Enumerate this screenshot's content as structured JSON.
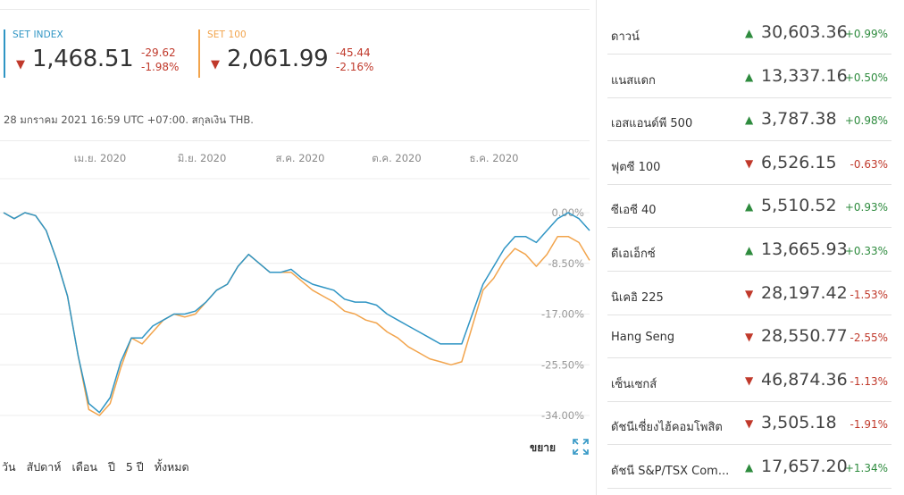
{
  "indices": {
    "set": {
      "name": "SET INDEX",
      "value": "1,468.51",
      "change": "-29.62",
      "pct": "-1.98%",
      "direction": "down"
    },
    "set100": {
      "name": "SET 100",
      "value": "2,061.99",
      "change": "-45.44",
      "pct": "-2.16%",
      "direction": "down"
    }
  },
  "timestamp": "28 มกราคม 2021 16:59 UTC +07:00. สกุลเงิน THB.",
  "controls": {
    "expand_label": "ขยาย",
    "ranges": [
      "วัน",
      "สัปดาห์",
      "เดือน",
      "ปี",
      "5 ปี",
      "ทั้งหมด"
    ]
  },
  "colors": {
    "set": "#2f95c4",
    "set100": "#f2a44c",
    "up": "#2e8b3e",
    "down": "#c0392b"
  },
  "tickers": [
    {
      "name": "ดาวน์",
      "value": "30,603.36",
      "change": "+0.99%",
      "direction": "up"
    },
    {
      "name": "แนสแดก",
      "value": "13,337.16",
      "change": "+0.50%",
      "direction": "up"
    },
    {
      "name": "เอสแอนด์พี 500",
      "value": "3,787.38",
      "change": "+0.98%",
      "direction": "up"
    },
    {
      "name": "ฟุตซี 100",
      "value": "6,526.15",
      "change": "-0.63%",
      "direction": "down"
    },
    {
      "name": "ซีเอซี 40",
      "value": "5,510.52",
      "change": "+0.93%",
      "direction": "up"
    },
    {
      "name": "ดีเอเอ็กซ์",
      "value": "13,665.93",
      "change": "+0.33%",
      "direction": "up"
    },
    {
      "name": "นิเคอิ 225",
      "value": "28,197.42",
      "change": "-1.53%",
      "direction": "down"
    },
    {
      "name": "Hang Seng",
      "value": "28,550.77",
      "change": "-2.55%",
      "direction": "down"
    },
    {
      "name": "เซ็นเซกส์",
      "value": "46,874.36",
      "change": "-1.13%",
      "direction": "down"
    },
    {
      "name": "ดัชนีเซี่ยงไฮ้คอมโพสิต",
      "value": "3,505.18",
      "change": "-1.91%",
      "direction": "down"
    },
    {
      "name": "ดัชนี S&P/TSX Com...",
      "value": "17,657.20",
      "change": "+1.34%",
      "direction": "up"
    }
  ],
  "chart_data": {
    "type": "line",
    "x_ticks": [
      "เม.ย. 2020",
      "มิ.ย. 2020",
      "ส.ค. 2020",
      "ต.ค. 2020",
      "ธ.ค. 2020"
    ],
    "y_ticks": [
      "0.00%",
      "-8.50%",
      "-17.00%",
      "-25.50%",
      "-34.00%"
    ],
    "ylim": [
      -36,
      1.5
    ],
    "grid": true,
    "series": [
      {
        "name": "SET INDEX",
        "color": "#2f95c4",
        "values": [
          0,
          -1,
          0,
          -0.5,
          -3,
          -8,
          -14,
          -24,
          -32,
          -33.5,
          -31,
          -25,
          -21,
          -21,
          -19,
          -18,
          -17,
          -17,
          -16.5,
          -15,
          -13,
          -12,
          -9,
          -7,
          -8.5,
          -10,
          -10,
          -9.5,
          -11,
          -12,
          -12.5,
          -13,
          -14.5,
          -15,
          -15,
          -15.5,
          -17,
          -18,
          -19,
          -20,
          -21,
          -22,
          -22,
          -22,
          -17,
          -12,
          -9,
          -6,
          -4,
          -4,
          -5,
          -3,
          -1,
          0,
          -1,
          -3
        ]
      },
      {
        "name": "SET 100",
        "color": "#f2a44c",
        "values": [
          0,
          -1,
          0,
          -0.5,
          -3,
          -8,
          -14,
          -24,
          -33,
          -34,
          -32,
          -26,
          -21,
          -22,
          -20,
          -18,
          -17,
          -17.5,
          -17,
          -15,
          -13,
          -12,
          -9,
          -7,
          -8.5,
          -10,
          -10,
          -10,
          -11.5,
          -13,
          -14,
          -15,
          -16.5,
          -17,
          -18,
          -18.5,
          -20,
          -21,
          -22.5,
          -23.5,
          -24.5,
          -25,
          -25.5,
          -25,
          -19,
          -13,
          -11,
          -8,
          -6,
          -7,
          -9,
          -7,
          -4,
          -4,
          -5,
          -8
        ]
      }
    ]
  }
}
